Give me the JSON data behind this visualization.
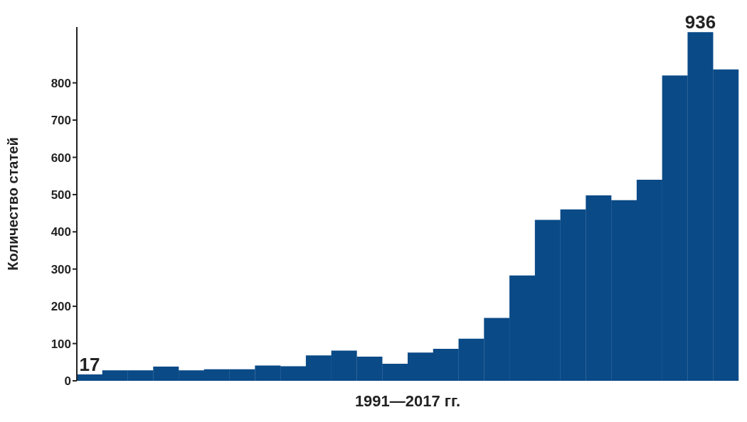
{
  "chart_data": {
    "type": "bar",
    "xlabel": "1991—2017 гг.",
    "ylabel": "Количество статей",
    "categories": [
      null,
      null,
      null,
      null,
      null,
      null,
      null,
      null,
      null,
      null,
      null,
      null,
      null,
      null,
      null,
      null,
      null,
      null,
      null,
      null,
      null,
      null,
      null,
      null,
      null,
      null
    ],
    "values": [
      17,
      28,
      28,
      38,
      28,
      31,
      31,
      41,
      39,
      68,
      81,
      65,
      46,
      76,
      86,
      113,
      169,
      283,
      432,
      460,
      498,
      485,
      540,
      820,
      936,
      836
    ],
    "value_labels": [
      "17",
      null,
      null,
      null,
      null,
      null,
      null,
      null,
      null,
      null,
      null,
      null,
      null,
      null,
      null,
      null,
      null,
      null,
      null,
      null,
      null,
      null,
      null,
      null,
      "936",
      null
    ],
    "color": "#0a4a87",
    "ylim": [
      0,
      950
    ],
    "yticks": [
      0,
      100,
      200,
      300,
      400,
      500,
      600,
      700,
      800
    ],
    "grid": false,
    "legend": false
  }
}
